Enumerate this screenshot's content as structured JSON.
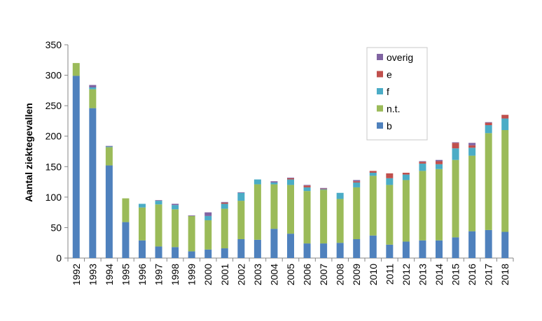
{
  "chart_data": {
    "type": "bar",
    "stacked": true,
    "title": "",
    "xlabel": "",
    "ylabel": "Aantal ziektegevallen",
    "ylim": [
      0,
      350
    ],
    "yticks": [
      0,
      50,
      100,
      150,
      200,
      250,
      300,
      350
    ],
    "grid": false,
    "legend_position": "top-right",
    "categories": [
      "1992",
      "1993",
      "1994",
      "1995",
      "1996",
      "1997",
      "1998",
      "1999",
      "2000",
      "2001",
      "2002",
      "2003",
      "2004",
      "2005",
      "2006",
      "2007",
      "2008",
      "2009",
      "2010",
      "2011",
      "2012",
      "2013",
      "2014",
      "2015",
      "2016",
      "2017",
      "2018"
    ],
    "series": [
      {
        "name": "b",
        "color": "#4f81bd",
        "values": [
          299,
          246,
          152,
          59,
          29,
          19,
          18,
          11,
          14,
          16,
          31,
          30,
          48,
          40,
          24,
          24,
          25,
          31,
          37,
          22,
          27,
          29,
          29,
          34,
          44,
          46,
          43
        ]
      },
      {
        "name": "n.t.",
        "color": "#9bbb59",
        "values": [
          21,
          31,
          30,
          39,
          54,
          69,
          62,
          58,
          48,
          65,
          63,
          91,
          73,
          80,
          86,
          88,
          72,
          85,
          98,
          98,
          101,
          114,
          117,
          127,
          124,
          159,
          167
        ]
      },
      {
        "name": "f",
        "color": "#4bacc6",
        "values": [
          0,
          3,
          1,
          0,
          6,
          6,
          7,
          0,
          7,
          8,
          13,
          8,
          3,
          9,
          6,
          1,
          10,
          8,
          5,
          11,
          9,
          12,
          8,
          19,
          13,
          13,
          19
        ]
      },
      {
        "name": "e",
        "color": "#c0504d",
        "values": [
          0,
          0,
          0,
          0,
          0,
          0,
          0,
          0,
          0,
          2,
          0,
          0,
          0,
          2,
          3,
          1,
          0,
          2,
          3,
          8,
          3,
          3,
          5,
          9,
          4,
          4,
          6
        ]
      },
      {
        "name": "overig",
        "color": "#8064a2",
        "values": [
          0,
          4,
          1,
          0,
          0,
          1,
          2,
          1,
          6,
          1,
          1,
          0,
          2,
          1,
          1,
          1,
          0,
          2,
          0,
          0,
          0,
          1,
          2,
          1,
          4,
          1,
          0
        ]
      }
    ],
    "legend_order": [
      "overig",
      "e",
      "f",
      "n.t.",
      "b"
    ]
  }
}
